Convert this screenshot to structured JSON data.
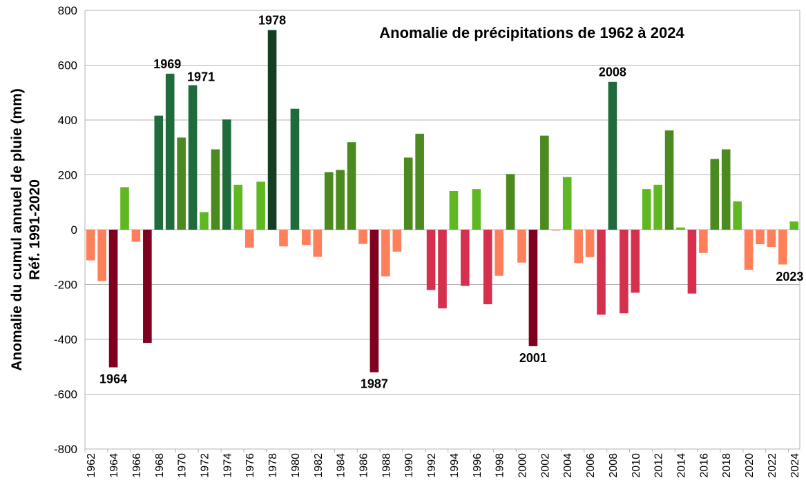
{
  "chart_data": {
    "type": "bar",
    "title": "Anomalie de précipitations de 1962 à 2024",
    "ylabel": [
      "Anomalie du cumul annuel de pluie (mm)",
      "Réf. 1991-2020"
    ],
    "xlabel": "",
    "ylim": [
      -800,
      800
    ],
    "yticks": [
      -800,
      -600,
      -400,
      -200,
      0,
      200,
      400,
      600,
      800
    ],
    "grid": true,
    "legend": "none",
    "categories": [
      1962,
      1963,
      1964,
      1965,
      1966,
      1967,
      1968,
      1969,
      1970,
      1971,
      1972,
      1973,
      1974,
      1975,
      1976,
      1977,
      1978,
      1979,
      1980,
      1981,
      1982,
      1983,
      1984,
      1985,
      1986,
      1987,
      1988,
      1989,
      1990,
      1991,
      1992,
      1993,
      1994,
      1995,
      1996,
      1997,
      1998,
      1999,
      2000,
      2001,
      2002,
      2003,
      2004,
      2005,
      2006,
      2007,
      2008,
      2009,
      2010,
      2011,
      2012,
      2013,
      2014,
      2015,
      2016,
      2017,
      2018,
      2019,
      2020,
      2021,
      2022,
      2023,
      2024
    ],
    "xtick_labels": [
      "1962",
      "1964",
      "1966",
      "1968",
      "1970",
      "1972",
      "1974",
      "1976",
      "1978",
      "1980",
      "1982",
      "1984",
      "1986",
      "1988",
      "1990",
      "1992",
      "1994",
      "1996",
      "1998",
      "2000",
      "2002",
      "2004",
      "2006",
      "2008",
      "2010",
      "2012",
      "2014",
      "2016",
      "2018",
      "2020",
      "2022",
      "2024"
    ],
    "values": [
      -112,
      -187,
      -502,
      155,
      -44,
      -413,
      416,
      569,
      336,
      527,
      64,
      293,
      402,
      164,
      -66,
      175,
      728,
      -61,
      441,
      -56,
      -99,
      210,
      218,
      319,
      -52,
      -520,
      -170,
      -80,
      263,
      350,
      -220,
      -287,
      141,
      -205,
      148,
      -272,
      -168,
      203,
      -120,
      -425,
      343,
      -3,
      192,
      -122,
      -100,
      -310,
      539,
      -305,
      -230,
      148,
      164,
      362,
      8,
      -233,
      -85,
      258,
      293,
      103,
      -146,
      -53,
      -63,
      -127,
      30
    ],
    "annotations": [
      {
        "year": 1964,
        "text": "1964",
        "position": "below"
      },
      {
        "year": 1969,
        "text": "1969",
        "position": "above"
      },
      {
        "year": 1971,
        "text": "1971",
        "position": "above"
      },
      {
        "year": 1978,
        "text": "1978",
        "position": "above"
      },
      {
        "year": 1987,
        "text": "1987",
        "position": "below"
      },
      {
        "year": 2001,
        "text": "2001",
        "position": "below"
      },
      {
        "year": 2008,
        "text": "2008",
        "position": "above"
      },
      {
        "year": 2023,
        "text": "2023",
        "position": "below"
      }
    ],
    "color_scale": [
      {
        "max": -400,
        "color": "#800020"
      },
      {
        "max": -200,
        "color": "#d6304f"
      },
      {
        "max": 0,
        "color": "#ff7f5a"
      },
      {
        "max": 200,
        "color": "#5fb822"
      },
      {
        "max": 400,
        "color": "#4a8a1e"
      },
      {
        "max": 700,
        "color": "#1f6b3c"
      },
      {
        "max": 10000,
        "color": "#133f22"
      }
    ]
  }
}
